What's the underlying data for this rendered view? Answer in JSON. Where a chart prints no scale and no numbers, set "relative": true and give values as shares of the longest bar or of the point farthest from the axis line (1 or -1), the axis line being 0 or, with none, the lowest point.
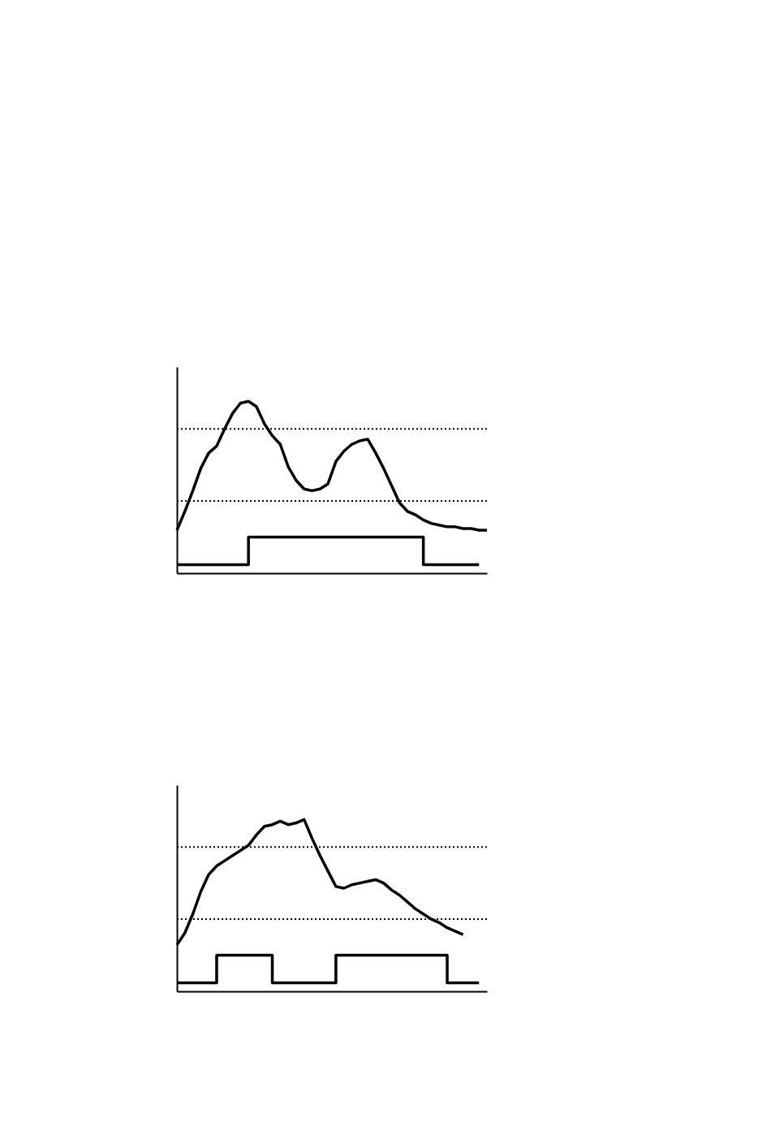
{
  "chart_data": [
    {
      "type": "line",
      "relative": true,
      "tick_labels": false,
      "grid": false,
      "categories": [
        null,
        null,
        null,
        null,
        null,
        null,
        null,
        null,
        null,
        null,
        null,
        null,
        null,
        null,
        null,
        null,
        null,
        null,
        null,
        null,
        null,
        null,
        null,
        null,
        null,
        null,
        null,
        null,
        null,
        null,
        null,
        null,
        null,
        null,
        null,
        null,
        null,
        null,
        null,
        null
      ],
      "series": [
        {
          "color": "#000000",
          "values": [
            0.25,
            0.36,
            0.48,
            0.61,
            0.7,
            0.74,
            0.84,
            0.93,
            0.99,
            1.0,
            0.97,
            0.87,
            0.8,
            0.75,
            0.62,
            0.54,
            0.49,
            0.48,
            0.49,
            0.52,
            0.65,
            0.71,
            0.75,
            0.77,
            0.78,
            0.7,
            0.61,
            0.51,
            0.41,
            0.36,
            0.34,
            0.31,
            0.29,
            0.28,
            0.27,
            0.27,
            0.26,
            0.26,
            0.25,
            0.25
          ]
        },
        {
          "type": "step",
          "color": "#000000",
          "values": [
            0.05,
            0.05,
            0.05,
            0.05,
            0.05,
            0.05,
            0.05,
            0.05,
            0.05,
            0.21,
            0.21,
            0.21,
            0.21,
            0.21,
            0.21,
            0.21,
            0.21,
            0.21,
            0.21,
            0.21,
            0.21,
            0.21,
            0.21,
            0.21,
            0.21,
            0.21,
            0.21,
            0.21,
            0.21,
            0.21,
            0.21,
            0.05,
            0.05,
            0.05,
            0.05,
            0.05,
            0.05,
            0.05,
            0.05,
            null
          ]
        }
      ],
      "ref_lines": [
        {
          "axis": "y",
          "value": 0.84,
          "color": "#000000",
          "line_style": "dotted"
        },
        {
          "axis": "y",
          "value": 0.42,
          "color": "#000000",
          "line_style": "dotted"
        }
      ]
    },
    {
      "type": "line",
      "relative": true,
      "tick_labels": false,
      "grid": false,
      "categories": [
        null,
        null,
        null,
        null,
        null,
        null,
        null,
        null,
        null,
        null,
        null,
        null,
        null,
        null,
        null,
        null,
        null,
        null,
        null,
        null,
        null,
        null,
        null,
        null,
        null,
        null,
        null,
        null,
        null,
        null,
        null,
        null,
        null,
        null,
        null,
        null,
        null,
        null,
        null,
        null
      ],
      "series": [
        {
          "color": "#000000",
          "values": [
            0.27,
            0.34,
            0.45,
            0.58,
            0.68,
            0.73,
            0.76,
            0.79,
            0.82,
            0.85,
            0.91,
            0.96,
            0.97,
            0.99,
            0.97,
            0.98,
            1.0,
            0.89,
            0.79,
            0.7,
            0.61,
            0.6,
            0.62,
            0.63,
            0.64,
            0.65,
            0.63,
            0.59,
            0.56,
            0.52,
            0.48,
            0.45,
            0.42,
            0.4,
            0.37,
            0.35,
            0.33,
            null,
            null,
            null
          ]
        },
        {
          "type": "step",
          "color": "#000000",
          "values": [
            0.05,
            0.05,
            0.05,
            0.05,
            0.05,
            0.21,
            0.21,
            0.21,
            0.21,
            0.21,
            0.21,
            0.21,
            0.05,
            0.05,
            0.05,
            0.05,
            0.05,
            0.05,
            0.05,
            0.05,
            0.21,
            0.21,
            0.21,
            0.21,
            0.21,
            0.21,
            0.21,
            0.21,
            0.21,
            0.21,
            0.21,
            0.21,
            0.21,
            0.21,
            0.05,
            0.05,
            0.05,
            0.05,
            0.05,
            null
          ]
        }
      ],
      "ref_lines": [
        {
          "axis": "y",
          "value": 0.84,
          "color": "#000000",
          "line_style": "dotted"
        },
        {
          "axis": "y",
          "value": 0.42,
          "color": "#000000",
          "line_style": "dotted"
        }
      ]
    }
  ]
}
